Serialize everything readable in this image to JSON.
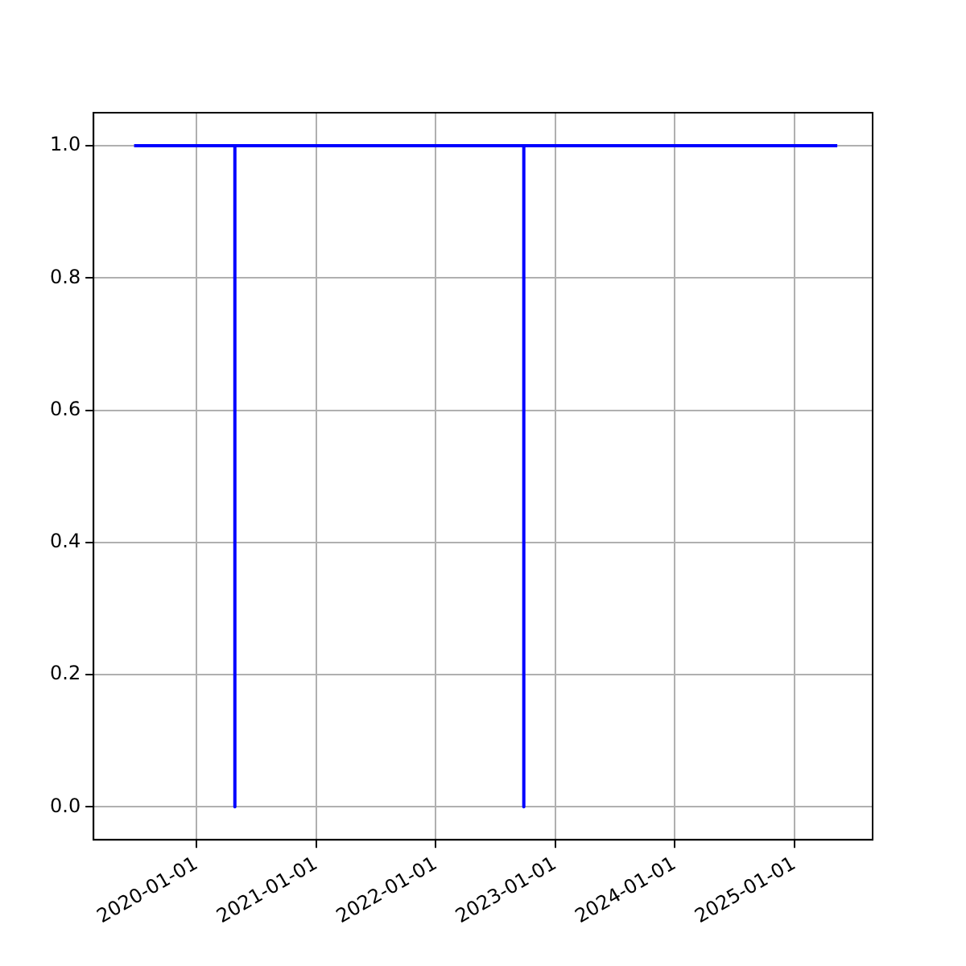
{
  "chart_data": {
    "type": "line",
    "x": [
      "2019-06-24",
      "2020-04-27",
      "2020-04-27",
      "2020-04-27",
      "2022-09-27",
      "2022-09-27",
      "2022-09-27",
      "2025-05-12"
    ],
    "series": [
      {
        "color": "#0000ff",
        "values": [
          1,
          1,
          0,
          1,
          1,
          0,
          1,
          1
        ]
      }
    ],
    "xlim": [
      "2019-02-20",
      "2025-08-28"
    ],
    "xticks": [
      "2020-01-01",
      "2021-01-01",
      "2022-01-01",
      "2023-01-01",
      "2024-01-01",
      "2025-01-01"
    ],
    "ylim": [
      -0.05,
      1.05
    ],
    "yticks": [
      {
        "value": 0,
        "label": "0.0"
      },
      {
        "value": 0.2,
        "label": "0.2"
      },
      {
        "value": 0.4,
        "label": "0.4"
      },
      {
        "value": 0.6,
        "label": "0.6"
      },
      {
        "value": 0.8,
        "label": "0.8"
      },
      {
        "value": 1,
        "label": "1.0"
      }
    ],
    "grid": true,
    "legend": false,
    "marker": "none",
    "line_style": "solid"
  }
}
